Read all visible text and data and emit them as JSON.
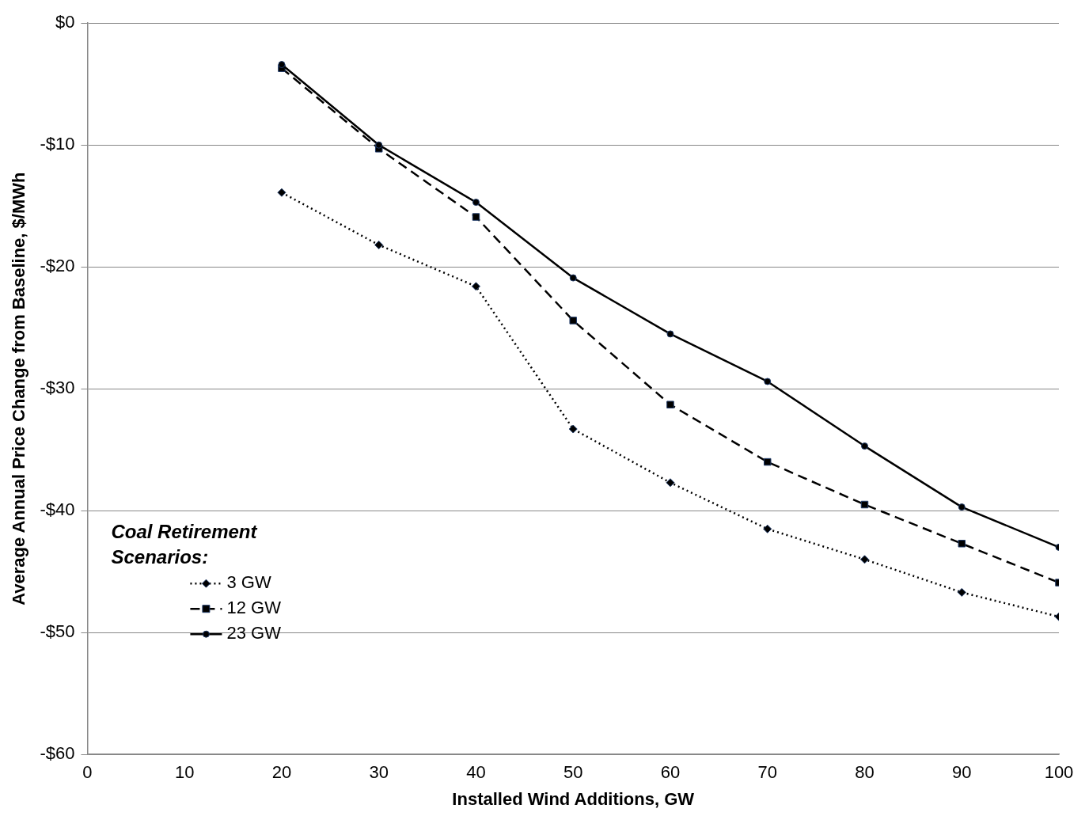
{
  "chart_data": {
    "type": "line",
    "xlabel": "Installed Wind Additions, GW",
    "ylabel": "Average Annual Price Change from Baseline, $/MWh",
    "legend_title": "Coal Retirement Scenarios:",
    "x": [
      20,
      30,
      40,
      50,
      60,
      70,
      80,
      90,
      100
    ],
    "series": [
      {
        "name": "3 GW",
        "color": "#000000",
        "marker": "diamond",
        "line_style": "dotted",
        "values": [
          -13.9,
          -18.2,
          -21.6,
          -33.3,
          -37.7,
          -41.5,
          -44.0,
          -46.7,
          -48.7
        ]
      },
      {
        "name": "12 GW",
        "color": "#000000",
        "marker": "square",
        "line_style": "dashed",
        "values": [
          -3.7,
          -10.3,
          -15.9,
          -24.4,
          -31.3,
          -36.0,
          -39.5,
          -42.7,
          -45.9
        ]
      },
      {
        "name": "23 GW",
        "color": "#000000",
        "marker": "circle",
        "line_style": "solid",
        "values": [
          -3.4,
          -10.0,
          -14.7,
          -20.9,
          -25.5,
          -29.4,
          -34.7,
          -39.7,
          -43.0
        ]
      }
    ],
    "xlim": [
      0,
      100
    ],
    "xticks": [
      0,
      10,
      20,
      30,
      40,
      50,
      60,
      70,
      80,
      90,
      100
    ],
    "ylim": [
      -60,
      0
    ],
    "yticks": [
      {
        "value": -60,
        "label": "-$60"
      },
      {
        "value": -50,
        "label": "-$50"
      },
      {
        "value": -40,
        "label": "-$40"
      },
      {
        "value": -30,
        "label": "-$30"
      },
      {
        "value": -20,
        "label": "-$20"
      },
      {
        "value": -10,
        "label": "-$10"
      },
      {
        "value": 0,
        "label": "$0"
      }
    ],
    "grid": "y",
    "legend": "bottom left"
  }
}
